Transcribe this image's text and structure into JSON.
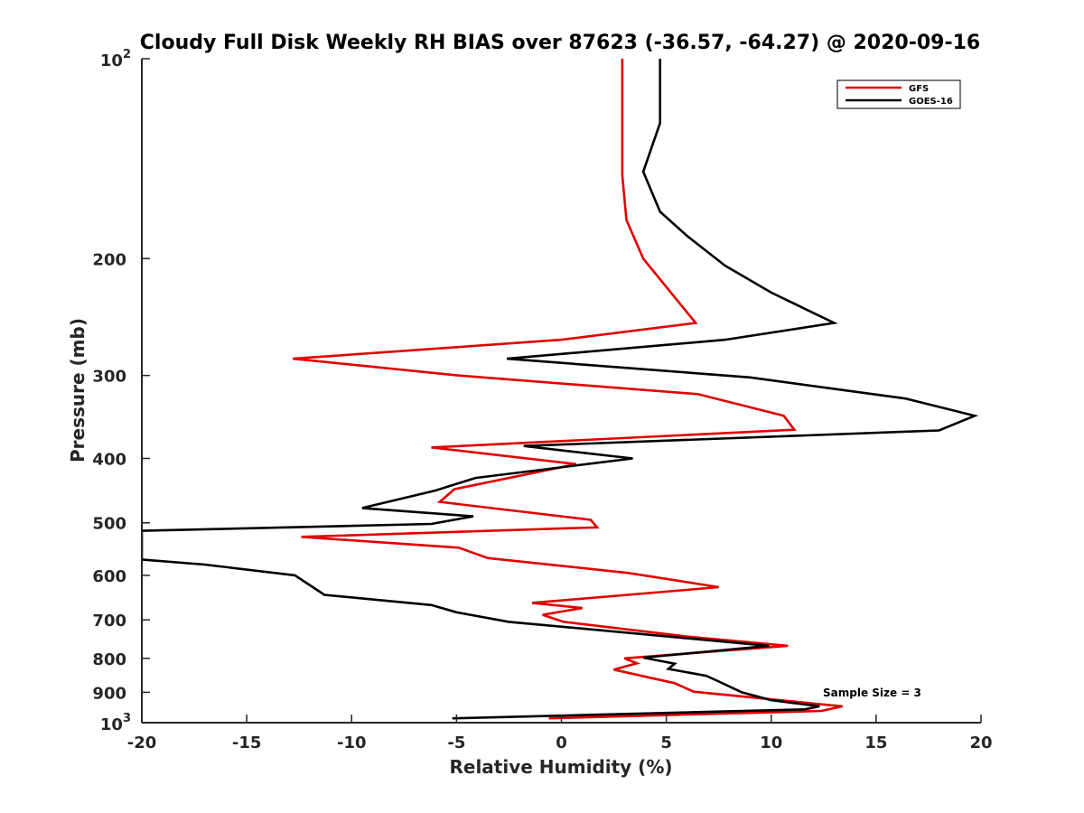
{
  "chart_data": {
    "type": "line",
    "title": "Cloudy Full Disk Weekly RH BIAS over 87623 (-36.57, -64.27) @ 2020-09-16",
    "xlabel": "Relative Humidity (%)",
    "ylabel": "Pressure (mb)",
    "xlim": [
      -20,
      20
    ],
    "ylim": [
      100,
      1000
    ],
    "y_scale": "log",
    "y_reversed": true,
    "x_ticks": [
      -20,
      -15,
      -10,
      -5,
      0,
      5,
      10,
      15,
      20
    ],
    "y_ticks": [
      {
        "value": 100,
        "label": "10",
        "sup": "2"
      },
      {
        "value": 200,
        "label": "200",
        "sup": ""
      },
      {
        "value": 300,
        "label": "300",
        "sup": ""
      },
      {
        "value": 400,
        "label": "400",
        "sup": ""
      },
      {
        "value": 500,
        "label": "500",
        "sup": ""
      },
      {
        "value": 600,
        "label": "600",
        "sup": ""
      },
      {
        "value": 700,
        "label": "700",
        "sup": ""
      },
      {
        "value": 800,
        "label": "800",
        "sup": ""
      },
      {
        "value": 900,
        "label": "900",
        "sup": ""
      },
      {
        "value": 1000,
        "label": "10",
        "sup": "3"
      }
    ],
    "grid": false,
    "legend_position": "top-right",
    "annotation": "Sample Size = 3",
    "series": [
      {
        "name": "GFS",
        "color": "#e00000",
        "points": [
          [
            2.9,
            100
          ],
          [
            2.9,
            125
          ],
          [
            2.9,
            150
          ],
          [
            3.1,
            175
          ],
          [
            3.9,
            200
          ],
          [
            6.4,
            250
          ],
          [
            0.0,
            265
          ],
          [
            -12.8,
            283
          ],
          [
            -4.9,
            300
          ],
          [
            6.5,
            320
          ],
          [
            10.6,
            345
          ],
          [
            11.1,
            362
          ],
          [
            -6.2,
            385
          ],
          [
            0.7,
            408
          ],
          [
            -5.1,
            445
          ],
          [
            -5.8,
            465
          ],
          [
            1.4,
            495
          ],
          [
            1.7,
            508
          ],
          [
            -12.4,
            525
          ],
          [
            -4.9,
            545
          ],
          [
            -3.5,
            565
          ],
          [
            3.2,
            595
          ],
          [
            7.5,
            625
          ],
          [
            -1.4,
            660
          ],
          [
            1.0,
            672
          ],
          [
            -0.9,
            688
          ],
          [
            0.1,
            705
          ],
          [
            6.0,
            742
          ],
          [
            10.8,
            766
          ],
          [
            3.0,
            800
          ],
          [
            3.6,
            814
          ],
          [
            2.5,
            832
          ],
          [
            5.4,
            872
          ],
          [
            6.3,
            898
          ],
          [
            10.4,
            925
          ],
          [
            13.4,
            945
          ],
          [
            12.4,
            960
          ],
          [
            -0.6,
            985
          ]
        ]
      },
      {
        "name": "GOES-16",
        "color": "#000000",
        "points": [
          [
            4.7,
            100
          ],
          [
            4.7,
            125
          ],
          [
            3.9,
            148
          ],
          [
            4.7,
            170
          ],
          [
            6.0,
            185
          ],
          [
            7.8,
            205
          ],
          [
            10.0,
            225
          ],
          [
            13.0,
            250
          ],
          [
            7.8,
            265
          ],
          [
            -2.6,
            283
          ],
          [
            9.0,
            302
          ],
          [
            16.4,
            325
          ],
          [
            19.7,
            345
          ],
          [
            18.0,
            363
          ],
          [
            -1.8,
            383
          ],
          [
            3.4,
            400
          ],
          [
            -4.1,
            428
          ],
          [
            -6.0,
            447
          ],
          [
            -9.5,
            475
          ],
          [
            -4.2,
            489
          ],
          [
            -6.2,
            502
          ],
          [
            -20.0,
            514
          ],
          [
            -20.0,
            568
          ],
          [
            -17.0,
            578
          ],
          [
            -12.7,
            600
          ],
          [
            -11.3,
            642
          ],
          [
            -6.2,
            665
          ],
          [
            -5.0,
            682
          ],
          [
            -2.5,
            705
          ],
          [
            9.9,
            766
          ],
          [
            3.9,
            798
          ],
          [
            5.4,
            815
          ],
          [
            5.1,
            830
          ],
          [
            6.9,
            850
          ],
          [
            7.6,
            870
          ],
          [
            8.6,
            900
          ],
          [
            10.0,
            925
          ],
          [
            12.3,
            945
          ],
          [
            11.6,
            955
          ],
          [
            -5.2,
            985
          ]
        ]
      }
    ]
  }
}
